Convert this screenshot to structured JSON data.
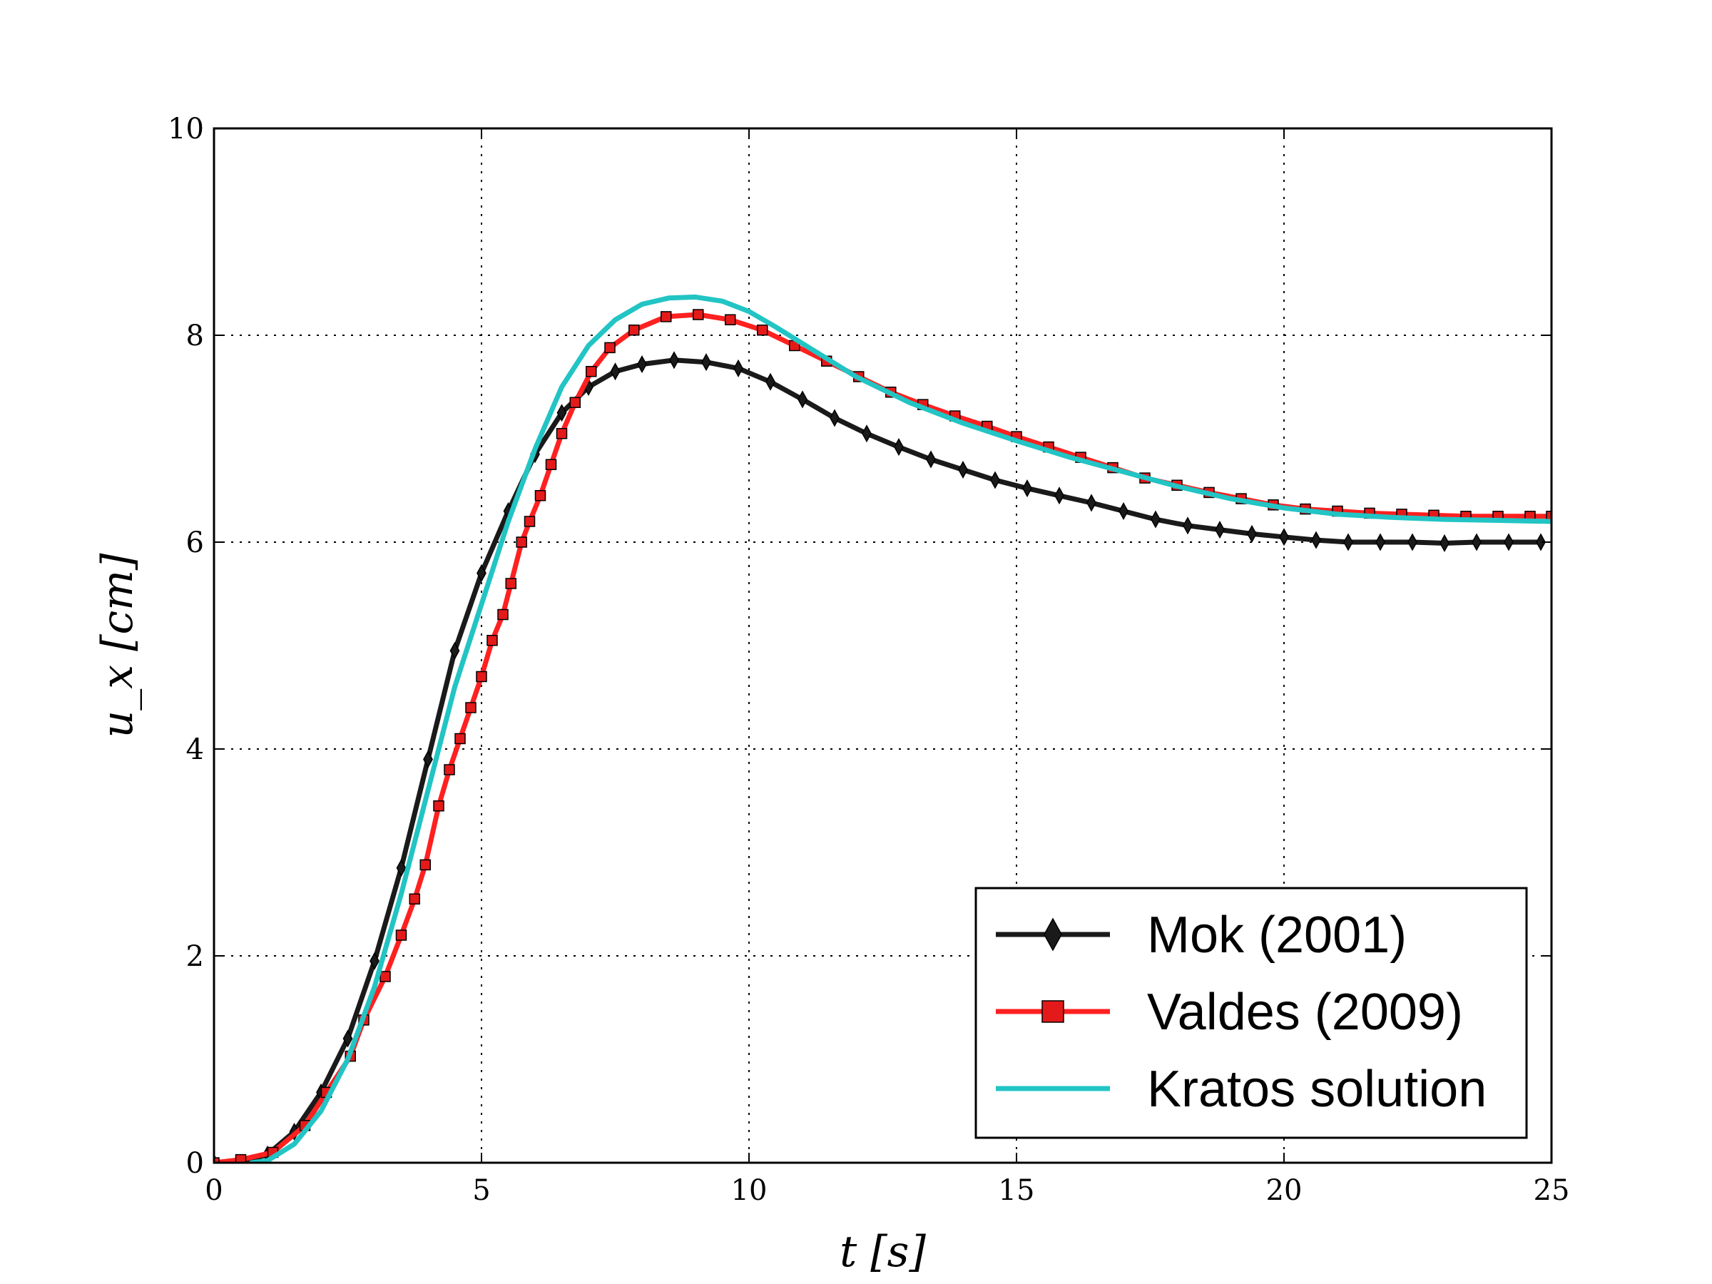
{
  "chart_data": {
    "type": "line",
    "title": "",
    "xlabel": "t  [s]",
    "ylabel": "u_x [cm]",
    "xlim": [
      0,
      25
    ],
    "ylim": [
      0,
      10
    ],
    "xticks": [
      0,
      5,
      10,
      15,
      20,
      25
    ],
    "yticks": [
      0,
      2,
      4,
      6,
      8,
      10
    ],
    "grid": true,
    "legend_position": "bottom-right",
    "series": [
      {
        "name": "Mok (2001)",
        "color": "#1a1a1a",
        "marker": "diamond",
        "x": [
          0,
          0.5,
          1.0,
          1.5,
          2.0,
          2.5,
          3.0,
          3.5,
          4.0,
          4.5,
          5.0,
          5.5,
          6.0,
          6.5,
          7.0,
          7.5,
          8.0,
          8.6,
          9.2,
          9.8,
          10.4,
          11.0,
          11.6,
          12.2,
          12.8,
          13.4,
          14.0,
          14.6,
          15.2,
          15.8,
          16.4,
          17.0,
          17.6,
          18.2,
          18.8,
          19.4,
          20.0,
          20.6,
          21.2,
          21.8,
          22.4,
          23.0,
          23.6,
          24.2,
          24.8
        ],
        "y": [
          0.0,
          0.0,
          0.08,
          0.3,
          0.68,
          1.2,
          1.95,
          2.85,
          3.9,
          4.95,
          5.7,
          6.3,
          6.85,
          7.25,
          7.5,
          7.65,
          7.72,
          7.76,
          7.74,
          7.68,
          7.55,
          7.38,
          7.2,
          7.05,
          6.92,
          6.8,
          6.7,
          6.6,
          6.52,
          6.45,
          6.38,
          6.3,
          6.22,
          6.16,
          6.12,
          6.08,
          6.05,
          6.02,
          6.0,
          6.0,
          6.0,
          5.99,
          6.0,
          6.0,
          6.0
        ]
      },
      {
        "name": "Valdes (2009)",
        "color": "#ff2020",
        "marker": "square",
        "x": [
          0,
          0.5,
          1.1,
          1.7,
          2.1,
          2.55,
          2.8,
          3.2,
          3.5,
          3.75,
          3.95,
          4.2,
          4.4,
          4.6,
          4.8,
          5.0,
          5.2,
          5.4,
          5.55,
          5.75,
          5.9,
          6.1,
          6.3,
          6.5,
          6.75,
          7.05,
          7.4,
          7.85,
          8.45,
          9.05,
          9.65,
          10.25,
          10.85,
          11.45,
          12.05,
          12.65,
          13.25,
          13.85,
          14.45,
          15.0,
          15.6,
          16.2,
          16.8,
          17.4,
          18.0,
          18.6,
          19.2,
          19.8,
          20.4,
          21.0,
          21.6,
          22.2,
          22.8,
          23.4,
          24.0,
          24.6,
          25.0
        ],
        "y": [
          0.0,
          0.03,
          0.1,
          0.36,
          0.68,
          1.03,
          1.38,
          1.8,
          2.2,
          2.55,
          2.88,
          3.45,
          3.8,
          4.1,
          4.4,
          4.7,
          5.05,
          5.3,
          5.6,
          6.0,
          6.2,
          6.45,
          6.75,
          7.05,
          7.35,
          7.65,
          7.88,
          8.05,
          8.18,
          8.2,
          8.15,
          8.05,
          7.9,
          7.75,
          7.6,
          7.45,
          7.33,
          7.22,
          7.12,
          7.02,
          6.92,
          6.82,
          6.72,
          6.62,
          6.55,
          6.48,
          6.42,
          6.36,
          6.32,
          6.3,
          6.28,
          6.27,
          6.26,
          6.25,
          6.25,
          6.25,
          6.25
        ]
      },
      {
        "name": "Kratos solution",
        "color": "#22c4c4",
        "marker": "none",
        "x": [
          0.7,
          1.0,
          1.5,
          2.0,
          2.5,
          3.0,
          3.5,
          4.0,
          4.5,
          5.0,
          5.5,
          6.0,
          6.5,
          7.0,
          7.5,
          8.0,
          8.5,
          9.0,
          9.5,
          10.0,
          10.5,
          11.0,
          12.0,
          13.0,
          14.0,
          15.0,
          16.0,
          17.0,
          18.0,
          19.0,
          20.0,
          21.0,
          22.0,
          23.0,
          24.0,
          25.0
        ],
        "y": [
          0.0,
          0.02,
          0.18,
          0.5,
          1.0,
          1.7,
          2.6,
          3.6,
          4.6,
          5.4,
          6.2,
          6.9,
          7.5,
          7.9,
          8.15,
          8.3,
          8.36,
          8.37,
          8.33,
          8.23,
          8.08,
          7.92,
          7.6,
          7.35,
          7.15,
          6.98,
          6.82,
          6.68,
          6.54,
          6.42,
          6.33,
          6.27,
          6.24,
          6.22,
          6.21,
          6.2
        ]
      }
    ]
  }
}
